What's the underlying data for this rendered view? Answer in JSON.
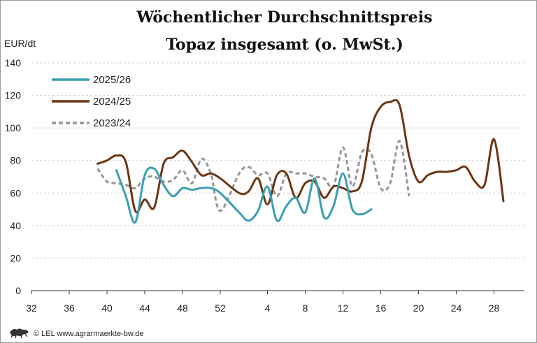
{
  "footer": "© LEL www.agrarmaerkte-bw.de",
  "chart_data": {
    "type": "line",
    "title_lines": [
      "Wöchentlicher Durchschnittspreis",
      "Topaz insgesamt (o. MwSt.)"
    ],
    "ylabel": "EUR/dt",
    "xlabel": "",
    "ylim": [
      0,
      140
    ],
    "yticks": [
      0,
      20,
      40,
      60,
      80,
      100,
      120,
      140
    ],
    "xticks": [
      "32",
      "36",
      "40",
      "44",
      "48",
      "52",
      "4",
      "8",
      "12",
      "16",
      "20",
      "24",
      "28"
    ],
    "x_axis_note": "marketing-year weeks, week 32 through week 30 of the following year",
    "grid": "horizontal dashed",
    "legend_position": "top-left",
    "series": [
      {
        "name": "2025/26",
        "color": "#3a9fb1",
        "dash": "none",
        "width": 3,
        "points": [
          [
            41,
            74
          ],
          [
            42,
            58
          ],
          [
            43,
            42
          ],
          [
            44,
            71
          ],
          [
            45,
            75
          ],
          [
            46,
            65
          ],
          [
            47,
            58
          ],
          [
            48,
            63
          ],
          [
            49,
            62
          ],
          [
            50,
            63
          ],
          [
            51,
            63
          ],
          [
            52,
            60
          ],
          [
            1,
            48
          ],
          [
            2,
            43
          ],
          [
            3,
            49
          ],
          [
            4,
            64
          ],
          [
            5,
            43
          ],
          [
            6,
            52
          ],
          [
            7,
            57
          ],
          [
            8,
            48
          ],
          [
            9,
            69
          ],
          [
            10,
            45
          ],
          [
            11,
            52
          ],
          [
            12,
            72
          ],
          [
            13,
            50
          ],
          [
            14,
            47
          ],
          [
            15,
            50
          ]
        ]
      },
      {
        "name": "2024/25",
        "color": "#6b3612",
        "dash": "none",
        "width": 3,
        "points": [
          [
            39,
            78
          ],
          [
            40,
            80
          ],
          [
            41,
            83
          ],
          [
            42,
            79
          ],
          [
            43,
            49
          ],
          [
            44,
            56
          ],
          [
            45,
            51
          ],
          [
            46,
            78
          ],
          [
            47,
            82
          ],
          [
            48,
            86
          ],
          [
            49,
            79
          ],
          [
            50,
            71
          ],
          [
            51,
            72
          ],
          [
            52,
            69
          ],
          [
            1,
            60
          ],
          [
            2,
            61
          ],
          [
            3,
            69
          ],
          [
            4,
            53
          ],
          [
            5,
            71
          ],
          [
            6,
            72
          ],
          [
            7,
            57
          ],
          [
            8,
            66
          ],
          [
            9,
            67
          ],
          [
            10,
            57
          ],
          [
            11,
            64
          ],
          [
            12,
            63
          ],
          [
            13,
            61
          ],
          [
            14,
            67
          ],
          [
            15,
            100
          ],
          [
            16,
            113
          ],
          [
            17,
            116
          ],
          [
            18,
            114
          ],
          [
            19,
            83
          ],
          [
            20,
            67
          ],
          [
            21,
            71
          ],
          [
            22,
            73
          ],
          [
            23,
            73
          ],
          [
            24,
            74
          ],
          [
            25,
            76
          ],
          [
            26,
            67
          ],
          [
            27,
            65
          ],
          [
            28,
            93
          ],
          [
            29,
            55
          ]
        ]
      },
      {
        "name": "2023/24",
        "color": "#959595",
        "dash": "6,4",
        "width": 3,
        "points": [
          [
            39,
            75
          ],
          [
            40,
            67
          ],
          [
            41,
            66
          ],
          [
            42,
            65
          ],
          [
            43,
            63
          ],
          [
            44,
            69
          ],
          [
            45,
            70
          ],
          [
            46,
            67
          ],
          [
            47,
            68
          ],
          [
            48,
            74
          ],
          [
            49,
            66
          ],
          [
            50,
            81
          ],
          [
            51,
            72
          ],
          [
            52,
            49
          ],
          [
            1,
            72
          ],
          [
            2,
            76
          ],
          [
            3,
            71
          ],
          [
            4,
            72
          ],
          [
            5,
            58
          ],
          [
            6,
            72
          ],
          [
            7,
            72
          ],
          [
            8,
            72
          ],
          [
            9,
            70
          ],
          [
            10,
            69
          ],
          [
            11,
            64
          ],
          [
            12,
            88
          ],
          [
            13,
            64
          ],
          [
            14,
            85
          ],
          [
            15,
            84
          ],
          [
            16,
            63
          ],
          [
            17,
            66
          ],
          [
            18,
            92
          ],
          [
            19,
            58
          ]
        ]
      }
    ]
  }
}
